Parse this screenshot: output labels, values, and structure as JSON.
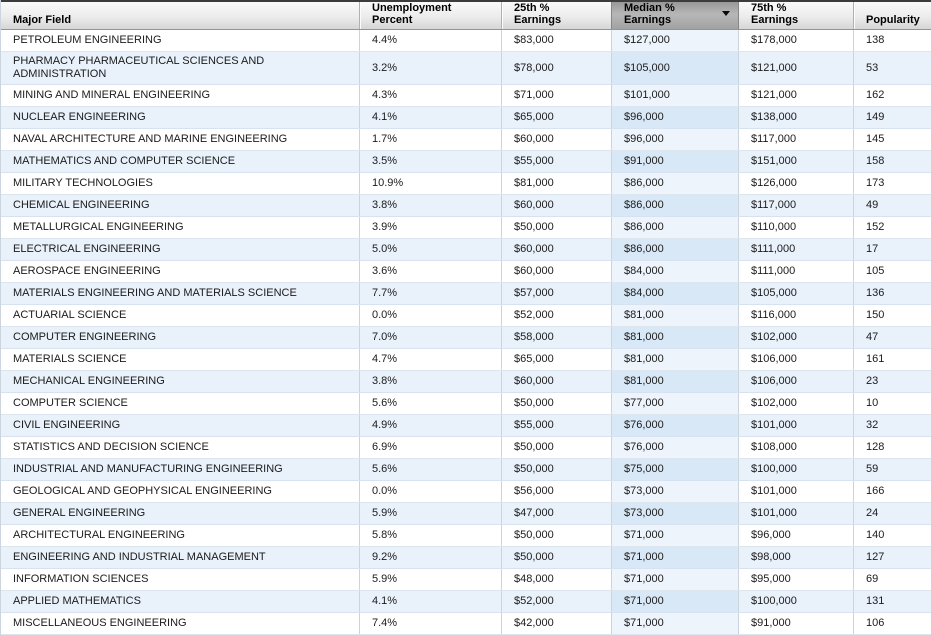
{
  "table": {
    "sort": {
      "column": "Median % Earnings",
      "direction": "descending"
    },
    "columns": [
      {
        "key": "major",
        "label": "Major Field"
      },
      {
        "key": "unemployment",
        "label": "Unemployment\nPercent"
      },
      {
        "key": "p25",
        "label": "25th %\nEarnings"
      },
      {
        "key": "median",
        "label": "Median %\nEarnings",
        "sorted": true
      },
      {
        "key": "p75",
        "label": "75th %\nEarnings"
      },
      {
        "key": "popularity",
        "label": "Popularity"
      }
    ],
    "rows": [
      {
        "major": "PETROLEUM ENGINEERING",
        "unemployment": "4.4%",
        "p25": "$83,000",
        "median": "$127,000",
        "p75": "$178,000",
        "popularity": "138"
      },
      {
        "major": "PHARMACY PHARMACEUTICAL SCIENCES AND ADMINISTRATION",
        "unemployment": "3.2%",
        "p25": "$78,000",
        "median": "$105,000",
        "p75": "$121,000",
        "popularity": "53"
      },
      {
        "major": "MINING AND MINERAL ENGINEERING",
        "unemployment": "4.3%",
        "p25": "$71,000",
        "median": "$101,000",
        "p75": "$121,000",
        "popularity": "162"
      },
      {
        "major": "NUCLEAR ENGINEERING",
        "unemployment": "4.1%",
        "p25": "$65,000",
        "median": "$96,000",
        "p75": "$138,000",
        "popularity": "149"
      },
      {
        "major": "NAVAL ARCHITECTURE AND MARINE ENGINEERING",
        "unemployment": "1.7%",
        "p25": "$60,000",
        "median": "$96,000",
        "p75": "$117,000",
        "popularity": "145"
      },
      {
        "major": "MATHEMATICS AND COMPUTER SCIENCE",
        "unemployment": "3.5%",
        "p25": "$55,000",
        "median": "$91,000",
        "p75": "$151,000",
        "popularity": "158"
      },
      {
        "major": "MILITARY TECHNOLOGIES",
        "unemployment": "10.9%",
        "p25": "$81,000",
        "median": "$86,000",
        "p75": "$126,000",
        "popularity": "173"
      },
      {
        "major": "CHEMICAL ENGINEERING",
        "unemployment": "3.8%",
        "p25": "$60,000",
        "median": "$86,000",
        "p75": "$117,000",
        "popularity": "49"
      },
      {
        "major": "METALLURGICAL ENGINEERING",
        "unemployment": "3.9%",
        "p25": "$50,000",
        "median": "$86,000",
        "p75": "$110,000",
        "popularity": "152"
      },
      {
        "major": "ELECTRICAL ENGINEERING",
        "unemployment": "5.0%",
        "p25": "$60,000",
        "median": "$86,000",
        "p75": "$111,000",
        "popularity": "17"
      },
      {
        "major": "AEROSPACE ENGINEERING",
        "unemployment": "3.6%",
        "p25": "$60,000",
        "median": "$84,000",
        "p75": "$111,000",
        "popularity": "105"
      },
      {
        "major": "MATERIALS ENGINEERING AND MATERIALS SCIENCE",
        "unemployment": "7.7%",
        "p25": "$57,000",
        "median": "$84,000",
        "p75": "$105,000",
        "popularity": "136"
      },
      {
        "major": "ACTUARIAL SCIENCE",
        "unemployment": "0.0%",
        "p25": "$52,000",
        "median": "$81,000",
        "p75": "$116,000",
        "popularity": "150"
      },
      {
        "major": "COMPUTER ENGINEERING",
        "unemployment": "7.0%",
        "p25": "$58,000",
        "median": "$81,000",
        "p75": "$102,000",
        "popularity": "47"
      },
      {
        "major": "MATERIALS SCIENCE",
        "unemployment": "4.7%",
        "p25": "$65,000",
        "median": "$81,000",
        "p75": "$106,000",
        "popularity": "161"
      },
      {
        "major": "MECHANICAL ENGINEERING",
        "unemployment": "3.8%",
        "p25": "$60,000",
        "median": "$81,000",
        "p75": "$106,000",
        "popularity": "23"
      },
      {
        "major": "COMPUTER SCIENCE",
        "unemployment": "5.6%",
        "p25": "$50,000",
        "median": "$77,000",
        "p75": "$102,000",
        "popularity": "10"
      },
      {
        "major": "CIVIL ENGINEERING",
        "unemployment": "4.9%",
        "p25": "$55,000",
        "median": "$76,000",
        "p75": "$101,000",
        "popularity": "32"
      },
      {
        "major": "STATISTICS AND DECISION SCIENCE",
        "unemployment": "6.9%",
        "p25": "$50,000",
        "median": "$76,000",
        "p75": "$108,000",
        "popularity": "128"
      },
      {
        "major": "INDUSTRIAL AND MANUFACTURING ENGINEERING",
        "unemployment": "5.6%",
        "p25": "$50,000",
        "median": "$75,000",
        "p75": "$100,000",
        "popularity": "59"
      },
      {
        "major": "GEOLOGICAL AND GEOPHYSICAL ENGINEERING",
        "unemployment": "0.0%",
        "p25": "$56,000",
        "median": "$73,000",
        "p75": "$101,000",
        "popularity": "166"
      },
      {
        "major": "GENERAL ENGINEERING",
        "unemployment": "5.9%",
        "p25": "$47,000",
        "median": "$73,000",
        "p75": "$101,000",
        "popularity": "24"
      },
      {
        "major": "ARCHITECTURAL ENGINEERING",
        "unemployment": "5.8%",
        "p25": "$50,000",
        "median": "$71,000",
        "p75": "$96,000",
        "popularity": "140"
      },
      {
        "major": "ENGINEERING AND INDUSTRIAL MANAGEMENT",
        "unemployment": "9.2%",
        "p25": "$50,000",
        "median": "$71,000",
        "p75": "$98,000",
        "popularity": "127"
      },
      {
        "major": "INFORMATION SCIENCES",
        "unemployment": "5.9%",
        "p25": "$48,000",
        "median": "$71,000",
        "p75": "$95,000",
        "popularity": "69"
      },
      {
        "major": "APPLIED MATHEMATICS",
        "unemployment": "4.1%",
        "p25": "$52,000",
        "median": "$71,000",
        "p75": "$100,000",
        "popularity": "131"
      },
      {
        "major": "MISCELLANEOUS ENGINEERING",
        "unemployment": "7.4%",
        "p25": "$42,000",
        "median": "$71,000",
        "p75": "$91,000",
        "popularity": "106"
      }
    ]
  },
  "colors": {
    "stripe_row": "#e9f1fb",
    "sorted_column_tint_white_row": "#edf4fc",
    "sorted_column_tint_stripe_row": "#d9e8f7",
    "header_gradient_top": "#fbfbfb",
    "header_gradient_bottom": "#d6d6d6",
    "sorted_header_gray": "#a2a2a2",
    "top_border": "#3c3c3c"
  }
}
